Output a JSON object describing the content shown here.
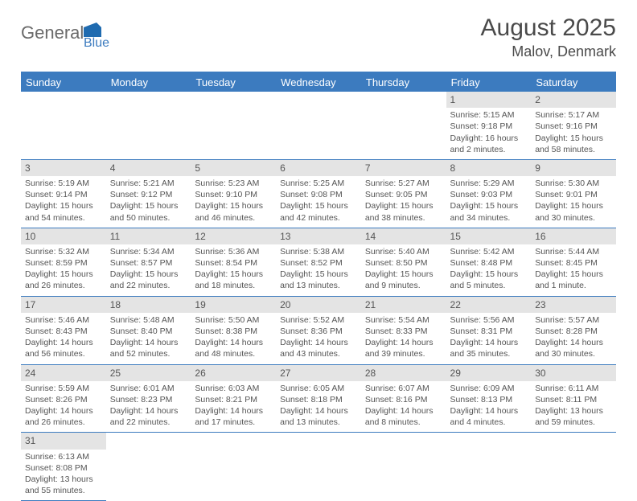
{
  "logo": {
    "text_general": "General",
    "text_blue": "Blue"
  },
  "title": "August 2025",
  "location": "Malov, Denmark",
  "weekdays": [
    "Sunday",
    "Monday",
    "Tuesday",
    "Wednesday",
    "Thursday",
    "Friday",
    "Saturday"
  ],
  "colors": {
    "header_bg": "#3c7bbf",
    "border": "#3c7bbf",
    "daynum_bg": "#e4e4e4",
    "text": "#4a4a4a"
  },
  "leading_blanks": 5,
  "days": [
    {
      "n": 1,
      "sunrise": "5:15 AM",
      "sunset": "9:18 PM",
      "daylight": "16 hours and 2 minutes."
    },
    {
      "n": 2,
      "sunrise": "5:17 AM",
      "sunset": "9:16 PM",
      "daylight": "15 hours and 58 minutes."
    },
    {
      "n": 3,
      "sunrise": "5:19 AM",
      "sunset": "9:14 PM",
      "daylight": "15 hours and 54 minutes."
    },
    {
      "n": 4,
      "sunrise": "5:21 AM",
      "sunset": "9:12 PM",
      "daylight": "15 hours and 50 minutes."
    },
    {
      "n": 5,
      "sunrise": "5:23 AM",
      "sunset": "9:10 PM",
      "daylight": "15 hours and 46 minutes."
    },
    {
      "n": 6,
      "sunrise": "5:25 AM",
      "sunset": "9:08 PM",
      "daylight": "15 hours and 42 minutes."
    },
    {
      "n": 7,
      "sunrise": "5:27 AM",
      "sunset": "9:05 PM",
      "daylight": "15 hours and 38 minutes."
    },
    {
      "n": 8,
      "sunrise": "5:29 AM",
      "sunset": "9:03 PM",
      "daylight": "15 hours and 34 minutes."
    },
    {
      "n": 9,
      "sunrise": "5:30 AM",
      "sunset": "9:01 PM",
      "daylight": "15 hours and 30 minutes."
    },
    {
      "n": 10,
      "sunrise": "5:32 AM",
      "sunset": "8:59 PM",
      "daylight": "15 hours and 26 minutes."
    },
    {
      "n": 11,
      "sunrise": "5:34 AM",
      "sunset": "8:57 PM",
      "daylight": "15 hours and 22 minutes."
    },
    {
      "n": 12,
      "sunrise": "5:36 AM",
      "sunset": "8:54 PM",
      "daylight": "15 hours and 18 minutes."
    },
    {
      "n": 13,
      "sunrise": "5:38 AM",
      "sunset": "8:52 PM",
      "daylight": "15 hours and 13 minutes."
    },
    {
      "n": 14,
      "sunrise": "5:40 AM",
      "sunset": "8:50 PM",
      "daylight": "15 hours and 9 minutes."
    },
    {
      "n": 15,
      "sunrise": "5:42 AM",
      "sunset": "8:48 PM",
      "daylight": "15 hours and 5 minutes."
    },
    {
      "n": 16,
      "sunrise": "5:44 AM",
      "sunset": "8:45 PM",
      "daylight": "15 hours and 1 minute."
    },
    {
      "n": 17,
      "sunrise": "5:46 AM",
      "sunset": "8:43 PM",
      "daylight": "14 hours and 56 minutes."
    },
    {
      "n": 18,
      "sunrise": "5:48 AM",
      "sunset": "8:40 PM",
      "daylight": "14 hours and 52 minutes."
    },
    {
      "n": 19,
      "sunrise": "5:50 AM",
      "sunset": "8:38 PM",
      "daylight": "14 hours and 48 minutes."
    },
    {
      "n": 20,
      "sunrise": "5:52 AM",
      "sunset": "8:36 PM",
      "daylight": "14 hours and 43 minutes."
    },
    {
      "n": 21,
      "sunrise": "5:54 AM",
      "sunset": "8:33 PM",
      "daylight": "14 hours and 39 minutes."
    },
    {
      "n": 22,
      "sunrise": "5:56 AM",
      "sunset": "8:31 PM",
      "daylight": "14 hours and 35 minutes."
    },
    {
      "n": 23,
      "sunrise": "5:57 AM",
      "sunset": "8:28 PM",
      "daylight": "14 hours and 30 minutes."
    },
    {
      "n": 24,
      "sunrise": "5:59 AM",
      "sunset": "8:26 PM",
      "daylight": "14 hours and 26 minutes."
    },
    {
      "n": 25,
      "sunrise": "6:01 AM",
      "sunset": "8:23 PM",
      "daylight": "14 hours and 22 minutes."
    },
    {
      "n": 26,
      "sunrise": "6:03 AM",
      "sunset": "8:21 PM",
      "daylight": "14 hours and 17 minutes."
    },
    {
      "n": 27,
      "sunrise": "6:05 AM",
      "sunset": "8:18 PM",
      "daylight": "14 hours and 13 minutes."
    },
    {
      "n": 28,
      "sunrise": "6:07 AM",
      "sunset": "8:16 PM",
      "daylight": "14 hours and 8 minutes."
    },
    {
      "n": 29,
      "sunrise": "6:09 AM",
      "sunset": "8:13 PM",
      "daylight": "14 hours and 4 minutes."
    },
    {
      "n": 30,
      "sunrise": "6:11 AM",
      "sunset": "8:11 PM",
      "daylight": "13 hours and 59 minutes."
    },
    {
      "n": 31,
      "sunrise": "6:13 AM",
      "sunset": "8:08 PM",
      "daylight": "13 hours and 55 minutes."
    }
  ],
  "labels": {
    "sunrise": "Sunrise: ",
    "sunset": "Sunset: ",
    "daylight": "Daylight: "
  }
}
